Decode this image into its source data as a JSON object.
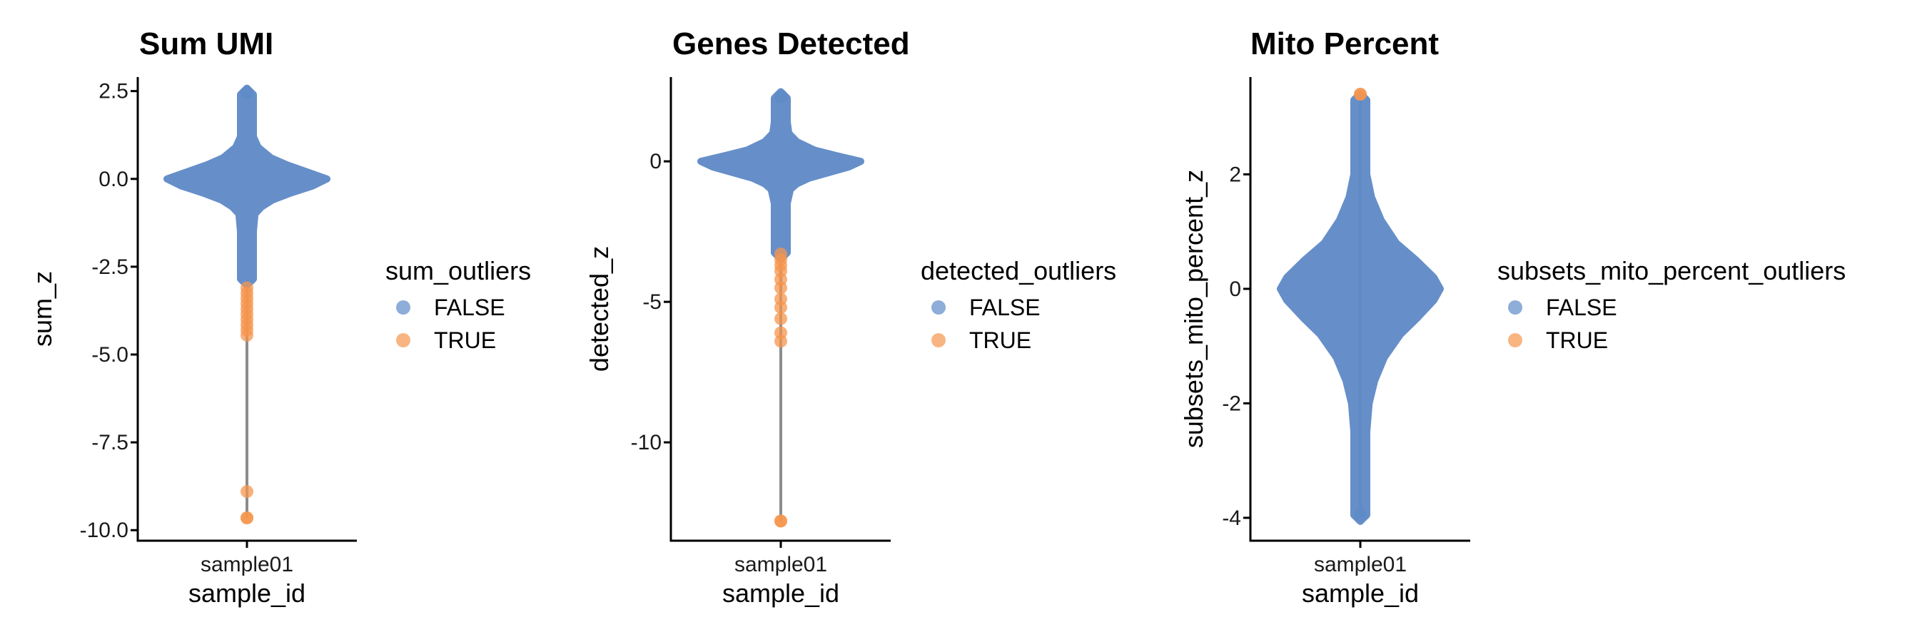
{
  "colors": {
    "false_points": "#5e8ac7",
    "true_points": "#f5964d",
    "whisker": "#8c8c8c",
    "axis": "#000000"
  },
  "chart_data": [
    {
      "type": "violin",
      "title": "Sum UMI",
      "xlabel": "sample_id",
      "ylabel": "sum_z",
      "categories": [
        "sample01"
      ],
      "ylim": [
        -10.3,
        2.9
      ],
      "yticks": [
        2.5,
        0.0,
        -2.5,
        -5.0,
        -7.5,
        -10.0
      ],
      "ytick_labels": [
        "2.5",
        "0.0",
        "-2.5",
        "-5.0",
        "-7.5",
        "-10.0"
      ],
      "legend": {
        "title": "sum_outliers",
        "entries": [
          "FALSE",
          "TRUE"
        ]
      },
      "range": [
        -9.65,
        2.45
      ],
      "outliers": [
        -3.1,
        -3.25,
        -3.4,
        -3.55,
        -3.7,
        -3.85,
        -4.0,
        -4.15,
        -4.3,
        -4.45,
        -8.9,
        -9.65
      ],
      "whisker": [
        -9.65,
        -2.9
      ],
      "density": [
        [
          2.4,
          0.02
        ],
        [
          2.0,
          0.04
        ],
        [
          1.6,
          0.06
        ],
        [
          1.2,
          0.08
        ],
        [
          0.9,
          0.14
        ],
        [
          0.6,
          0.3
        ],
        [
          0.4,
          0.5
        ],
        [
          0.2,
          0.75
        ],
        [
          0.0,
          1.0
        ],
        [
          -0.2,
          0.82
        ],
        [
          -0.4,
          0.55
        ],
        [
          -0.6,
          0.32
        ],
        [
          -0.8,
          0.18
        ],
        [
          -1.0,
          0.1
        ],
        [
          -1.5,
          0.06
        ],
        [
          -2.0,
          0.045
        ],
        [
          -2.5,
          0.03
        ],
        [
          -2.85,
          0.015
        ]
      ]
    },
    {
      "type": "violin",
      "title": "Genes Detected",
      "xlabel": "sample_id",
      "ylabel": "detected_z",
      "categories": [
        "sample01"
      ],
      "ylim": [
        -13.5,
        3.0
      ],
      "yticks": [
        0,
        -5,
        -10
      ],
      "ytick_labels": [
        "0",
        "-5",
        "-10"
      ],
      "legend": {
        "title": "detected_outliers",
        "entries": [
          "FALSE",
          "TRUE"
        ]
      },
      "range": [
        -12.8,
        2.3
      ],
      "outliers": [
        -3.3,
        -3.5,
        -3.7,
        -3.9,
        -4.2,
        -4.5,
        -4.9,
        -5.2,
        -5.6,
        -6.1,
        -6.4,
        -12.8
      ],
      "whisker": [
        -12.8,
        -3.2
      ],
      "density": [
        [
          2.25,
          0.02
        ],
        [
          1.8,
          0.04
        ],
        [
          1.4,
          0.06
        ],
        [
          1.0,
          0.1
        ],
        [
          0.7,
          0.2
        ],
        [
          0.4,
          0.42
        ],
        [
          0.2,
          0.7
        ],
        [
          0.0,
          1.0
        ],
        [
          -0.2,
          0.85
        ],
        [
          -0.4,
          0.6
        ],
        [
          -0.6,
          0.35
        ],
        [
          -0.8,
          0.2
        ],
        [
          -1.0,
          0.12
        ],
        [
          -1.5,
          0.07
        ],
        [
          -2.0,
          0.05
        ],
        [
          -2.5,
          0.04
        ],
        [
          -3.0,
          0.025
        ],
        [
          -3.25,
          0.015
        ]
      ]
    },
    {
      "type": "violin",
      "title": "Mito Percent",
      "xlabel": "sample_id",
      "ylabel": "subsets_mito_percent_z",
      "categories": [
        "sample01"
      ],
      "ylim": [
        -4.4,
        3.7
      ],
      "yticks": [
        2,
        0,
        -2,
        -4
      ],
      "ytick_labels": [
        "2",
        "0",
        "-2",
        "-4"
      ],
      "legend": {
        "title": "subsets_mito_percent_outliers",
        "entries": [
          "FALSE",
          "TRUE"
        ]
      },
      "range": [
        -3.95,
        3.4
      ],
      "outliers": [
        3.4
      ],
      "whisker": [
        -3.95,
        3.4
      ],
      "density": [
        [
          3.3,
          0.02
        ],
        [
          2.8,
          0.04
        ],
        [
          2.4,
          0.06
        ],
        [
          2.0,
          0.08
        ],
        [
          1.6,
          0.14
        ],
        [
          1.2,
          0.26
        ],
        [
          0.8,
          0.45
        ],
        [
          0.5,
          0.7
        ],
        [
          0.2,
          0.92
        ],
        [
          0.0,
          1.0
        ],
        [
          -0.2,
          0.92
        ],
        [
          -0.5,
          0.72
        ],
        [
          -0.8,
          0.5
        ],
        [
          -1.2,
          0.3
        ],
        [
          -1.6,
          0.18
        ],
        [
          -2.0,
          0.11
        ],
        [
          -2.5,
          0.07
        ],
        [
          -3.0,
          0.045
        ],
        [
          -3.5,
          0.03
        ],
        [
          -3.95,
          0.015
        ]
      ]
    }
  ]
}
